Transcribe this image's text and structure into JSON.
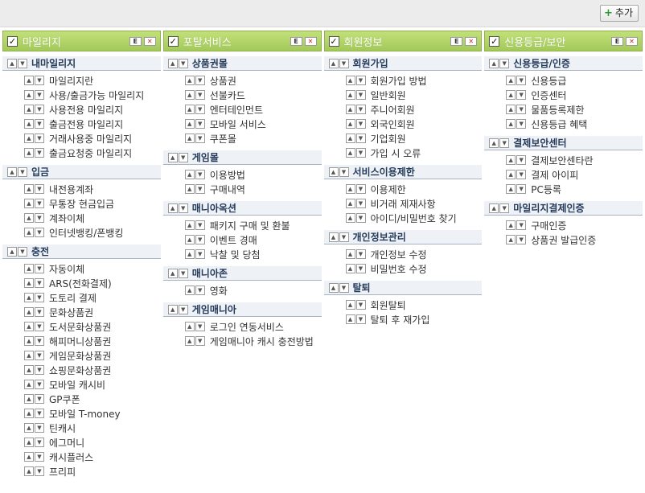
{
  "add_label": "추가",
  "columns": [
    {
      "title": "마일리지",
      "sections": [
        {
          "title": "내마일리지",
          "items": [
            "마일리지란",
            "사용/출금가능 마일리지",
            "사용전용 마일리지",
            "출금전용 마일리지",
            "거래사용중 마일리지",
            "출금요청중 마일리지"
          ]
        },
        {
          "title": "입금",
          "items": [
            "내전용계좌",
            "무통장 현금입금",
            "계좌이체",
            "인터넷뱅킹/폰뱅킹"
          ]
        },
        {
          "title": "충전",
          "items": [
            "자동이체",
            "ARS(전화결제)",
            "도토리 결제",
            "문화상품권",
            "도서문화상품권",
            "해피머니상품권",
            "게임문화상품권",
            "쇼핑문화상품권",
            "모바일 캐시비",
            "GP쿠폰",
            "모바일 T-money",
            "틴캐시",
            "에그머니",
            "캐시플러스",
            "프리피"
          ]
        }
      ]
    },
    {
      "title": "포탈서비스",
      "sections": [
        {
          "title": "상품권몰",
          "items": [
            "상품권",
            "선불카드",
            "엔터테인먼트",
            "모바일 서비스",
            "쿠폰몰"
          ]
        },
        {
          "title": "게임몰",
          "items": [
            "이용방법",
            "구매내역"
          ]
        },
        {
          "title": "매니아옥션",
          "items": [
            "패키지 구매 및 환불",
            "이벤트 경매",
            "낙찰 및 당첨"
          ]
        },
        {
          "title": "매니아존",
          "items": [
            "영화"
          ]
        },
        {
          "title": "게임매니아",
          "items": [
            "로그인 연동서비스",
            "게임매니아 캐시 충전방법"
          ]
        }
      ]
    },
    {
      "title": "회원정보",
      "sections": [
        {
          "title": "회원가입",
          "items": [
            "회원가입 방법",
            "일반회원",
            "주니어회원",
            "외국인회원",
            "기업회원",
            "가입 시 오류"
          ]
        },
        {
          "title": "서비스이용제한",
          "items": [
            "이용제한",
            "비거래 제재사항",
            "아이디/비밀번호 찾기"
          ]
        },
        {
          "title": "개인정보관리",
          "items": [
            "개인정보 수정",
            "비밀번호 수정"
          ]
        },
        {
          "title": "탈퇴",
          "items": [
            "회원탈퇴",
            "탈퇴 후 재가입"
          ]
        }
      ]
    },
    {
      "title": "신용등급/보안",
      "sections": [
        {
          "title": "신용등급/인증",
          "items": [
            "신용등급",
            "인증센터",
            "물품등록제한",
            "신용등급 혜택"
          ]
        },
        {
          "title": "결제보안센터",
          "items": [
            "결제보안센타란",
            "결제 아이피",
            "PC등록"
          ]
        },
        {
          "title": "마일리지결제인증",
          "items": [
            "구매인증",
            "상품권 발급인증"
          ]
        }
      ]
    }
  ]
}
